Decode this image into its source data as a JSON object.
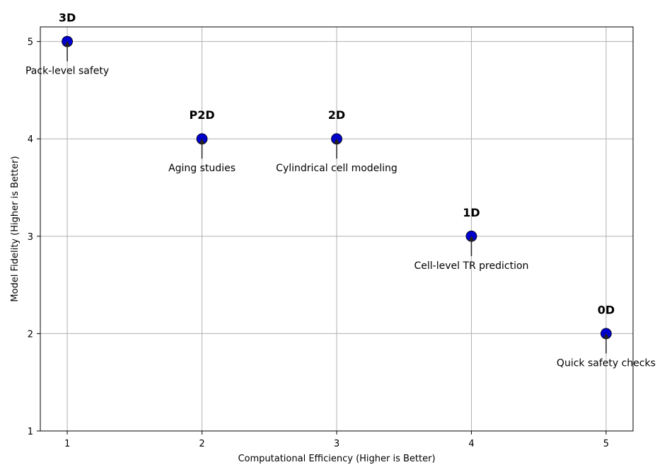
{
  "chart_data": {
    "type": "scatter",
    "title": "",
    "xlabel": "Computational Efficiency (Higher is Better)",
    "ylabel": "Model Fidelity (Higher is Better)",
    "xlim": [
      0.8,
      5.2
    ],
    "ylim": [
      1,
      5.15
    ],
    "xticks": [
      "1",
      "2",
      "3",
      "4",
      "5"
    ],
    "yticks": [
      "1",
      "2",
      "3",
      "4",
      "5"
    ],
    "grid": true,
    "point_color": "#0000cc",
    "points": [
      {
        "label": "3D",
        "annotation": "Pack-level safety",
        "x": 1,
        "y": 5
      },
      {
        "label": "P2D",
        "annotation": "Aging studies",
        "x": 2,
        "y": 4
      },
      {
        "label": "2D",
        "annotation": "Cylindrical cell modeling",
        "x": 3,
        "y": 4
      },
      {
        "label": "1D",
        "annotation": "Cell-level TR prediction",
        "x": 4,
        "y": 3
      },
      {
        "label": "0D",
        "annotation": "Quick safety checks",
        "x": 5,
        "y": 2
      }
    ]
  }
}
